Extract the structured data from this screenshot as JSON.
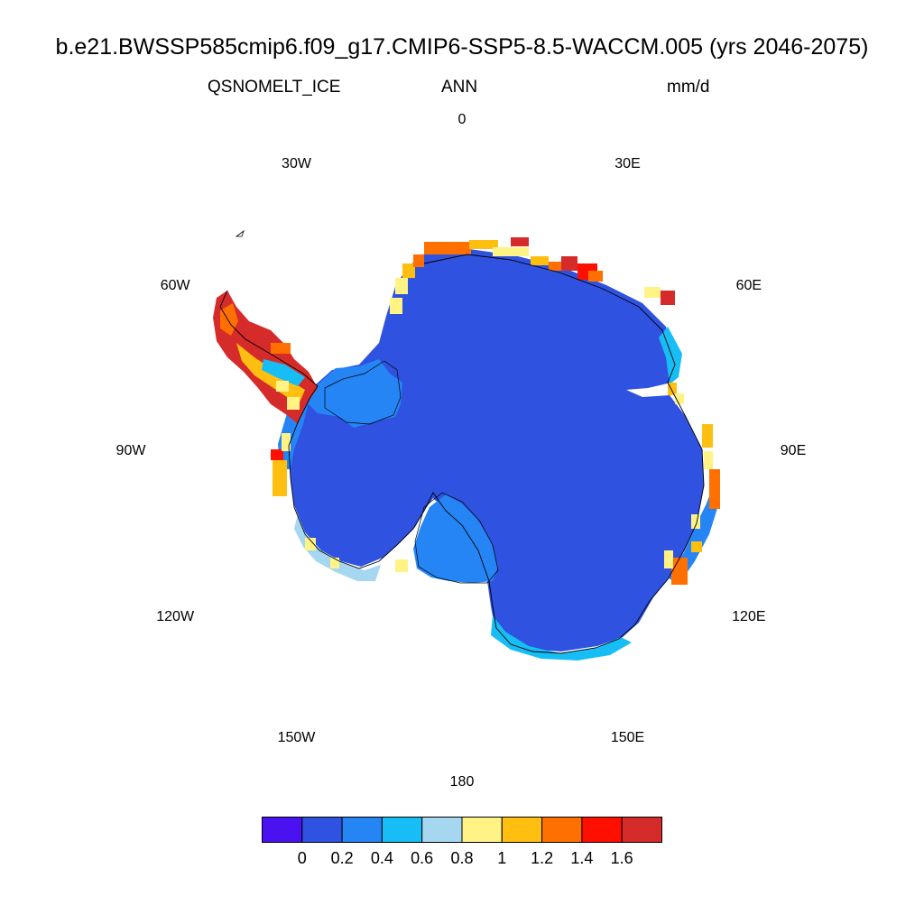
{
  "figure": {
    "title": "b.e21.BWSSP585cmip6.f09_g17.CMIP6-SSP5-8.5-WACCM.005 (yrs 2046-2075)",
    "variable": "QSNOMELT_ICE",
    "season": "ANN",
    "units": "mm/d"
  },
  "map": {
    "projection": "south-polar-stereographic",
    "longitude_labels": [
      "0",
      "30E",
      "60E",
      "90E",
      "120E",
      "150E",
      "180",
      "150W",
      "120W",
      "90W",
      "60W",
      "30W"
    ],
    "fill_interior": "#2f52e0",
    "fill_coastal_low": "#2585f5",
    "coastal_highlights": [
      {
        "region": "Antarctic Peninsula",
        "level_mm_per_day": ">1.6",
        "color": "#d62b2b"
      },
      {
        "region": "Dronning Maud Land coast",
        "level_mm_per_day": "1.0-1.6",
        "color": "#ff7000"
      },
      {
        "region": "Amundsen/Bellingshausen coast",
        "level_mm_per_day": "0.8-1.2",
        "color": "#ffbf10"
      },
      {
        "region": "Wilkes Land coast",
        "level_mm_per_day": "0.6-1.2",
        "color": "#ffbf10"
      }
    ]
  },
  "colorbar": {
    "colors": [
      "#4a12f0",
      "#2f52e0",
      "#2585f5",
      "#16bef5",
      "#a5d8f0",
      "#fff385",
      "#ffbf10",
      "#ff7000",
      "#ff0f00",
      "#d62b2b"
    ],
    "tick_labels": [
      "0",
      "0.2",
      "0.4",
      "0.6",
      "0.8",
      "1",
      "1.2",
      "1.4",
      "1.6"
    ]
  }
}
